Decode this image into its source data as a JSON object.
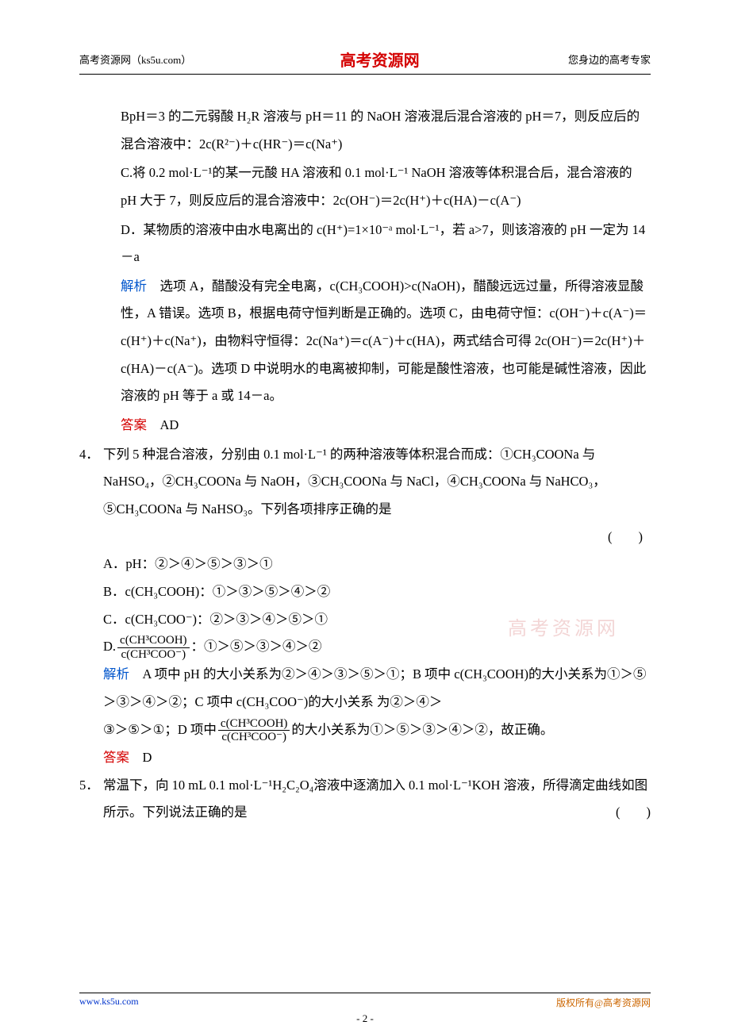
{
  "header": {
    "left": "高考资源网（ks5u.com）",
    "center": "高考资源网",
    "right": "您身边的高考专家"
  },
  "watermark": "高考资源网",
  "footer": {
    "left": "www.ks5u.com",
    "right": "版权所有@高考资源网",
    "page": "- 2 -"
  },
  "q3": {
    "optB": "BpH＝3 的二元弱酸 H₂R 溶液与 pH＝11 的 NaOH 溶液混后混合溶液的 pH＝7，则反应后的混合溶液中：2c(R²⁻)＋c(HR⁻)＝c(Na⁺)",
    "optC": "C.将 0.2 mol·L⁻¹的某一元酸 HA 溶液和 0.1 mol·L⁻¹ NaOH 溶液等体积混合后，混合溶液的 pH 大于 7，则反应后的混合溶液中：2c(OH⁻)＝2c(H⁺)＋c(HA)－c(A⁻)",
    "optD": "D．某物质的溶液中由水电离出的 c(H⁺)=1×10⁻ᵃ mol·L⁻¹，若 a>7，则该溶液的 pH 一定为 14－a",
    "analysisLabel": "解析",
    "analysis": "　选项 A，醋酸没有完全电离，c(CH₃COOH)>c(NaOH)，醋酸远远过量，所得溶液显酸性，A 错误。选项 B，根据电荷守恒判断是正确的。选项 C，由电荷守恒：c(OH⁻)＋c(A⁻)＝c(H⁺)＋c(Na⁺)，由物料守恒得：2c(Na⁺)＝c(A⁻)＋c(HA)，两式结合可得 2c(OH⁻)＝2c(H⁺)＋c(HA)－c(A⁻)。选项 D 中说明水的电离被抑制，可能是酸性溶液，也可能是碱性溶液，因此溶液的 pH 等于 a 或 14－a。",
    "answerLabel": "答案",
    "answer": "　AD"
  },
  "q4": {
    "num": "4．",
    "stem": "下列 5 种混合溶液，分别由 0.1 mol·L⁻¹ 的两种溶液等体积混合而成：①CH₃COONa 与 NaHSO₄，②CH₃COONa 与 NaOH，③CH₃COONa 与 NaCl，④CH₃COONa 与 NaHCO₃，⑤CH₃COONa 与 NaHSO₃。下列各项排序正确的是",
    "paren": "(　　)",
    "optA": "A．pH：②＞④＞⑤＞③＞①",
    "optB": "B．c(CH₃COOH)：①＞③＞⑤＞④＞②",
    "optC": "C．c(CH₃COO⁻)：②＞③＞④＞⑤＞①",
    "optD_prefix": "D.",
    "optD_num": "c(CH³COOH)",
    "optD_den": "c(CH³COO⁻)",
    "optD_suffix": "：①＞⑤＞③＞④＞②",
    "analysisLabel": "解析",
    "analysis1": "　A 项中 pH 的大小关系为②＞④＞③＞⑤＞①；B 项中 c(CH₃COOH)的大小关系为①＞⑤＞③＞④＞②；C 项中 c(CH₃COO⁻)的大小关系  为②＞④＞",
    "analysis2a": "③＞⑤＞①；D 项中",
    "analysis2_num": "c(CH³COOH)",
    "analysis2_den": "c(CH³COO⁻)",
    "analysis2b": "的大小关系为①＞⑤＞③＞④＞②，故正确。",
    "answerLabel": "答案",
    "answer": "　D"
  },
  "q5": {
    "num": "5．",
    "stem": "常温下，向 10 mL 0.1 mol·L⁻¹H₂C₂O₄溶液中逐滴加入 0.1 mol·L⁻¹KOH 溶液，所得滴定曲线如图所示。下列说法正确的是",
    "paren": "(　　)"
  }
}
